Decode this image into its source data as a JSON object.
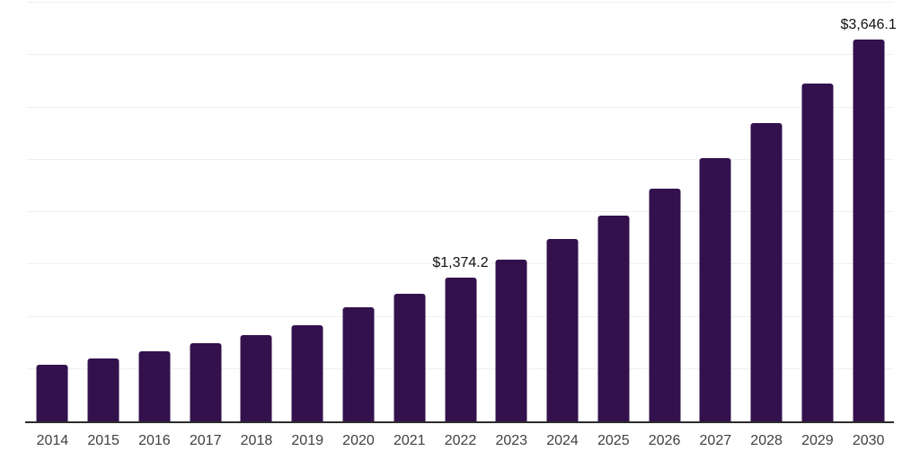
{
  "chart_data": {
    "type": "bar",
    "title": "",
    "xlabel": "",
    "ylabel": "",
    "categories": [
      "2014",
      "2015",
      "2016",
      "2017",
      "2018",
      "2019",
      "2020",
      "2021",
      "2022",
      "2023",
      "2024",
      "2025",
      "2026",
      "2027",
      "2028",
      "2029",
      "2030"
    ],
    "values": [
      540,
      600,
      667,
      744,
      827,
      919,
      1090,
      1219,
      1374.2,
      1546,
      1746,
      1966,
      2226,
      2518,
      2850,
      3231,
      3646.1
    ],
    "data_labels": [
      null,
      null,
      null,
      null,
      null,
      null,
      null,
      null,
      "$1,374.2",
      null,
      null,
      null,
      null,
      null,
      null,
      null,
      "$3,646.1"
    ],
    "ylim": [
      0,
      4000
    ],
    "gridline_values": [
      500,
      1000,
      1500,
      2000,
      2500,
      3000,
      3500,
      4000
    ],
    "grid": true,
    "legend": false,
    "y_axis_labels_visible": false,
    "colors": {
      "bar": "#33114d",
      "axis_line": "#2d2d2d",
      "gridline": "#f0f0f0",
      "tick_label": "#404040",
      "data_label": "#111111",
      "background": "#ffffff"
    }
  }
}
